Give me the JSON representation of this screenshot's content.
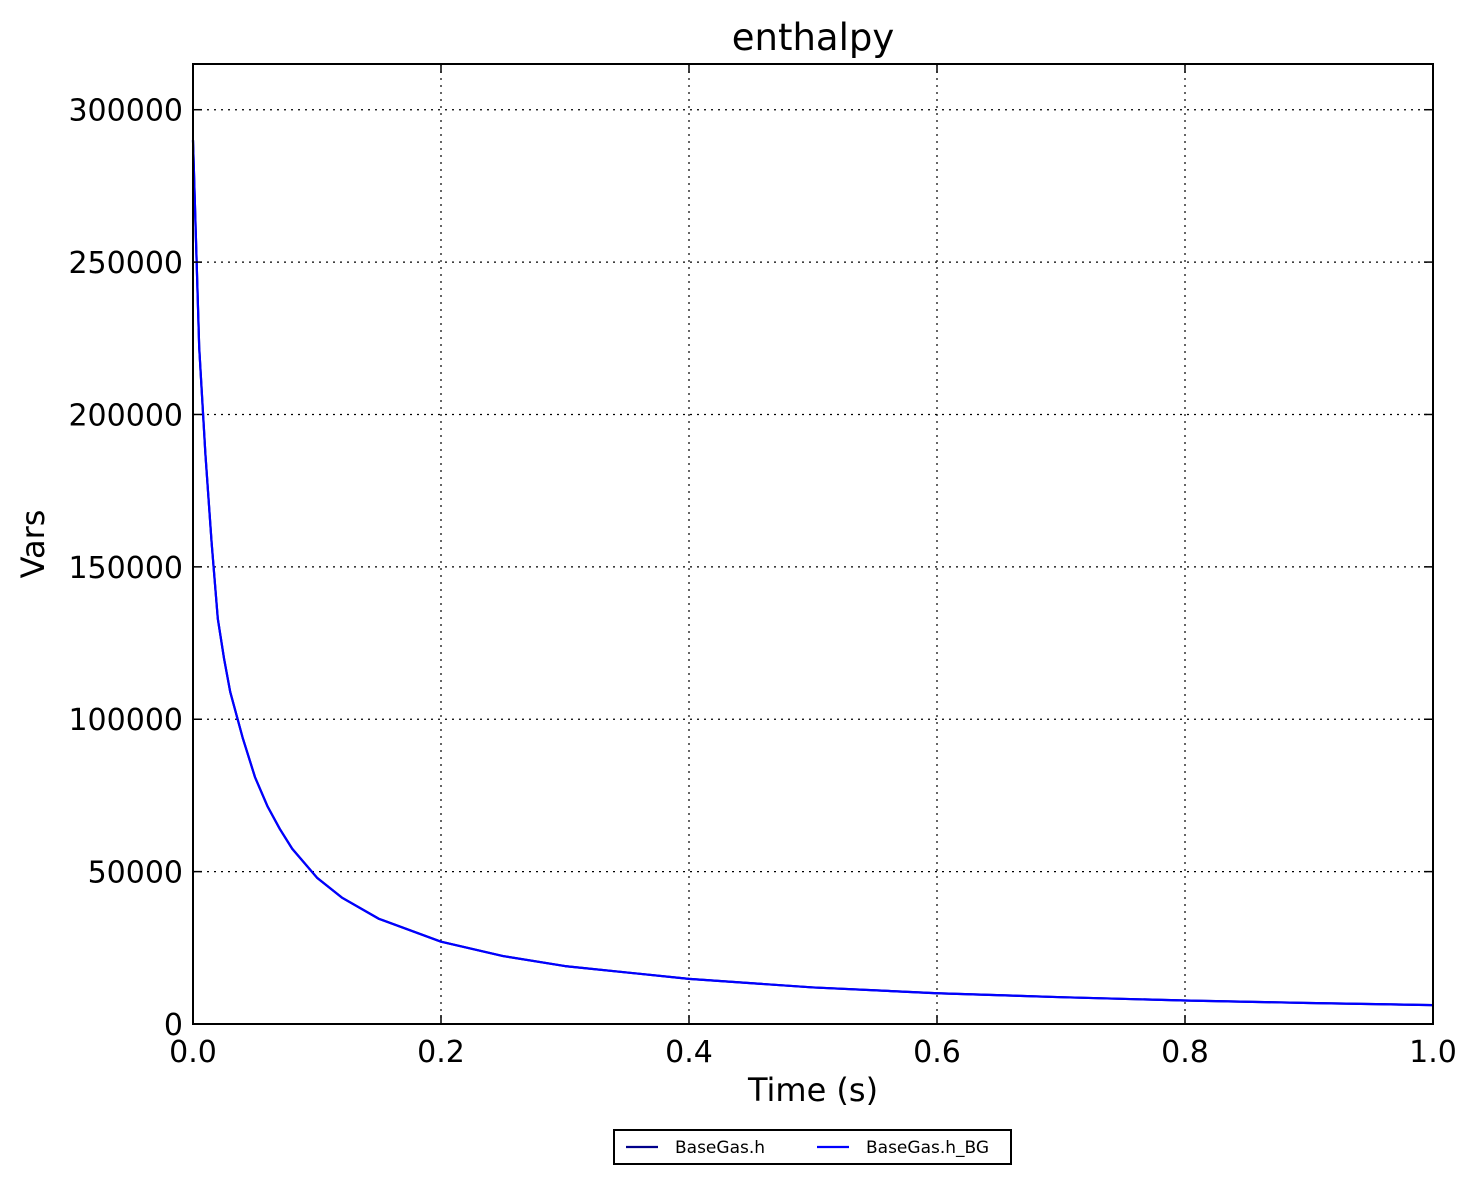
{
  "chart_data": {
    "type": "line",
    "title": "enthalpy",
    "xlabel": "Time (s)",
    "ylabel": "Vars",
    "xlim": [
      0.0,
      1.0
    ],
    "ylim": [
      0,
      315000
    ],
    "xticks": [
      0.0,
      0.2,
      0.4,
      0.6,
      0.8,
      1.0
    ],
    "xtick_labels": [
      "0.0",
      "0.2",
      "0.4",
      "0.6",
      "0.8",
      "1.0"
    ],
    "yticks": [
      0,
      50000,
      100000,
      150000,
      200000,
      250000,
      300000
    ],
    "ytick_labels": [
      "0",
      "50000",
      "100000",
      "150000",
      "200000",
      "250000",
      "300000"
    ],
    "grid": true,
    "legend_position": "below-center",
    "x": [
      0.0,
      0.005,
      0.01,
      0.015,
      0.02,
      0.025,
      0.03,
      0.04,
      0.05,
      0.06,
      0.07,
      0.08,
      0.1,
      0.12,
      0.15,
      0.2,
      0.25,
      0.3,
      0.4,
      0.5,
      0.6,
      0.7,
      0.8,
      0.9,
      1.0
    ],
    "series": [
      {
        "name": "BaseGas.h",
        "color": "#00008b",
        "values": [
          290000,
          222000,
          187000,
          158000,
          133000,
          120000,
          109000,
          94000,
          81000,
          71500,
          64000,
          57500,
          48000,
          41500,
          34500,
          27000,
          22300,
          19000,
          14800,
          12000,
          10100,
          8800,
          7700,
          6900,
          6200
        ]
      },
      {
        "name": "BaseGas.h_BG",
        "color": "#0000ff",
        "values": [
          290000,
          222000,
          187000,
          158000,
          133000,
          120000,
          109000,
          94000,
          81000,
          71500,
          64000,
          57500,
          48000,
          41500,
          34500,
          27000,
          22300,
          19000,
          14800,
          12000,
          10100,
          8800,
          7700,
          6900,
          6200
        ]
      }
    ]
  }
}
